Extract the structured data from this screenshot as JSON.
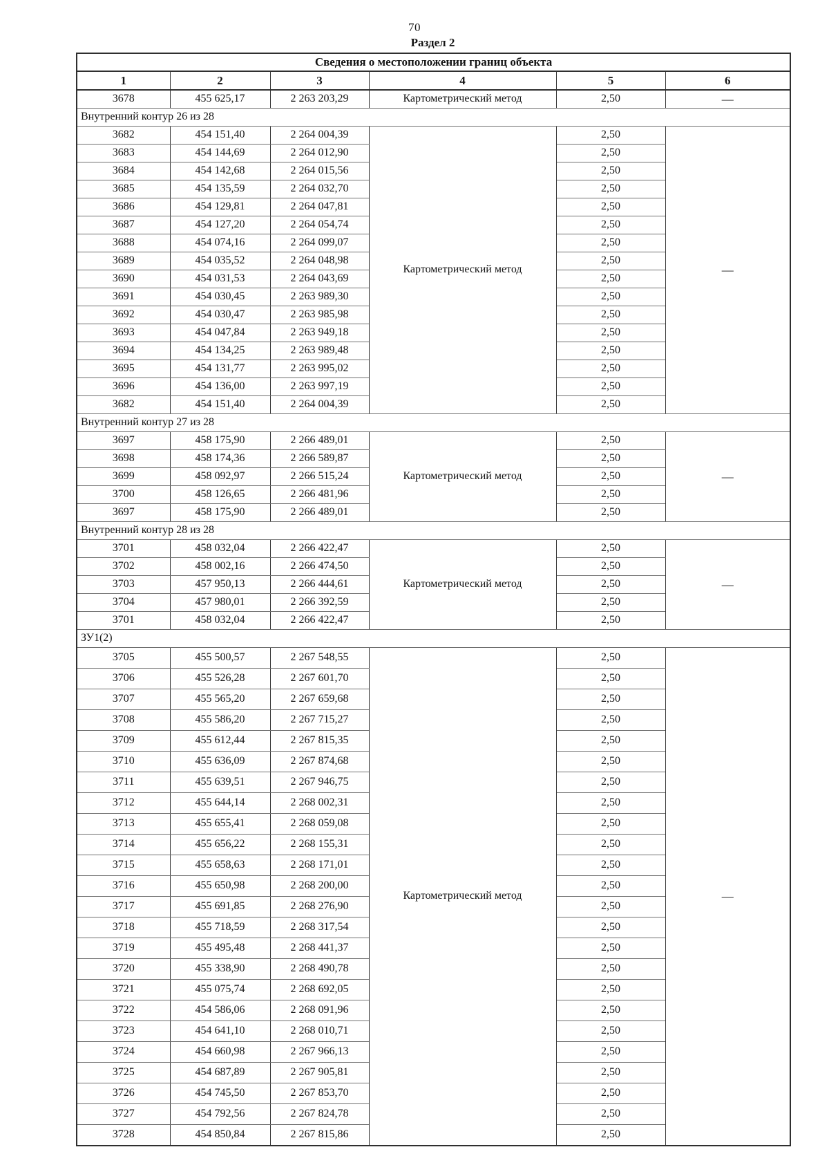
{
  "page": {
    "number": "70",
    "section_title": "Раздел 2"
  },
  "table": {
    "title": "Сведения о местоположении границ объекта",
    "column_headers": [
      "1",
      "2",
      "3",
      "4",
      "5",
      "6"
    ],
    "blocks": [
      {
        "section": null,
        "method": "Картометрический метод",
        "precision": "2,50",
        "accuracy": "—",
        "rows": [
          {
            "point": "3678",
            "x": "455 625,17",
            "y": "2 263 203,29"
          }
        ]
      },
      {
        "section": "Внутренний контур 26 из 28",
        "method": "Картометрический метод",
        "precision": "2,50",
        "accuracy": "—",
        "rows": [
          {
            "point": "3682",
            "x": "454 151,40",
            "y": "2 264 004,39"
          },
          {
            "point": "3683",
            "x": "454 144,69",
            "y": "2 264 012,90"
          },
          {
            "point": "3684",
            "x": "454 142,68",
            "y": "2 264 015,56"
          },
          {
            "point": "3685",
            "x": "454 135,59",
            "y": "2 264 032,70"
          },
          {
            "point": "3686",
            "x": "454 129,81",
            "y": "2 264 047,81"
          },
          {
            "point": "3687",
            "x": "454 127,20",
            "y": "2 264 054,74"
          },
          {
            "point": "3688",
            "x": "454 074,16",
            "y": "2 264 099,07"
          },
          {
            "point": "3689",
            "x": "454 035,52",
            "y": "2 264 048,98"
          },
          {
            "point": "3690",
            "x": "454 031,53",
            "y": "2 264 043,69"
          },
          {
            "point": "3691",
            "x": "454 030,45",
            "y": "2 263 989,30"
          },
          {
            "point": "3692",
            "x": "454 030,47",
            "y": "2 263 985,98"
          },
          {
            "point": "3693",
            "x": "454 047,84",
            "y": "2 263 949,18"
          },
          {
            "point": "3694",
            "x": "454 134,25",
            "y": "2 263 989,48"
          },
          {
            "point": "3695",
            "x": "454 131,77",
            "y": "2 263 995,02"
          },
          {
            "point": "3696",
            "x": "454 136,00",
            "y": "2 263 997,19"
          },
          {
            "point": "3682",
            "x": "454 151,40",
            "y": "2 264 004,39"
          }
        ]
      },
      {
        "section": "Внутренний контур 27 из 28",
        "method": "Картометрический метод",
        "precision": "2,50",
        "accuracy": "—",
        "rows": [
          {
            "point": "3697",
            "x": "458 175,90",
            "y": "2 266 489,01"
          },
          {
            "point": "3698",
            "x": "458 174,36",
            "y": "2 266 589,87"
          },
          {
            "point": "3699",
            "x": "458 092,97",
            "y": "2 266 515,24"
          },
          {
            "point": "3700",
            "x": "458 126,65",
            "y": "2 266 481,96"
          },
          {
            "point": "3697",
            "x": "458 175,90",
            "y": "2 266 489,01"
          }
        ]
      },
      {
        "section": "Внутренний контур 28 из 28",
        "method": "Картометрический метод",
        "precision": "2,50",
        "accuracy": "—",
        "rows": [
          {
            "point": "3701",
            "x": "458 032,04",
            "y": "2 266 422,47"
          },
          {
            "point": "3702",
            "x": "458 002,16",
            "y": "2 266 474,50"
          },
          {
            "point": "3703",
            "x": "457 950,13",
            "y": "2 266 444,61"
          },
          {
            "point": "3704",
            "x": "457 980,01",
            "y": "2 266 392,59"
          },
          {
            "point": "3701",
            "x": "458 032,04",
            "y": "2 266 422,47"
          }
        ]
      },
      {
        "section": "ЗУ1(2)",
        "method": "Картометрический метод",
        "precision": "2,50",
        "accuracy": "—",
        "rows": [
          {
            "point": "3705",
            "x": "455 500,57",
            "y": "2 267 548,55"
          },
          {
            "point": "3706",
            "x": "455 526,28",
            "y": "2 267 601,70"
          },
          {
            "point": "3707",
            "x": "455 565,20",
            "y": "2 267 659,68"
          },
          {
            "point": "3708",
            "x": "455 586,20",
            "y": "2 267 715,27"
          },
          {
            "point": "3709",
            "x": "455 612,44",
            "y": "2 267 815,35"
          },
          {
            "point": "3710",
            "x": "455 636,09",
            "y": "2 267 874,68"
          },
          {
            "point": "3711",
            "x": "455 639,51",
            "y": "2 267 946,75"
          },
          {
            "point": "3712",
            "x": "455 644,14",
            "y": "2 268 002,31"
          },
          {
            "point": "3713",
            "x": "455 655,41",
            "y": "2 268 059,08"
          },
          {
            "point": "3714",
            "x": "455 656,22",
            "y": "2 268 155,31"
          },
          {
            "point": "3715",
            "x": "455 658,63",
            "y": "2 268 171,01"
          },
          {
            "point": "3716",
            "x": "455 650,98",
            "y": "2 268 200,00"
          },
          {
            "point": "3717",
            "x": "455 691,85",
            "y": "2 268 276,90"
          },
          {
            "point": "3718",
            "x": "455 718,59",
            "y": "2 268 317,54"
          },
          {
            "point": "3719",
            "x": "455 495,48",
            "y": "2 268 441,37"
          },
          {
            "point": "3720",
            "x": "455 338,90",
            "y": "2 268 490,78"
          },
          {
            "point": "3721",
            "x": "455 075,74",
            "y": "2 268 692,05"
          },
          {
            "point": "3722",
            "x": "454 586,06",
            "y": "2 268 091,96"
          },
          {
            "point": "3723",
            "x": "454 641,10",
            "y": "2 268 010,71"
          },
          {
            "point": "3724",
            "x": "454 660,98",
            "y": "2 267 966,13"
          },
          {
            "point": "3725",
            "x": "454 687,89",
            "y": "2 267 905,81"
          },
          {
            "point": "3726",
            "x": "454 745,50",
            "y": "2 267 853,70"
          },
          {
            "point": "3727",
            "x": "454 792,56",
            "y": "2 267 824,78"
          },
          {
            "point": "3728",
            "x": "454 850,84",
            "y": "2 267 815,86"
          }
        ]
      }
    ]
  }
}
